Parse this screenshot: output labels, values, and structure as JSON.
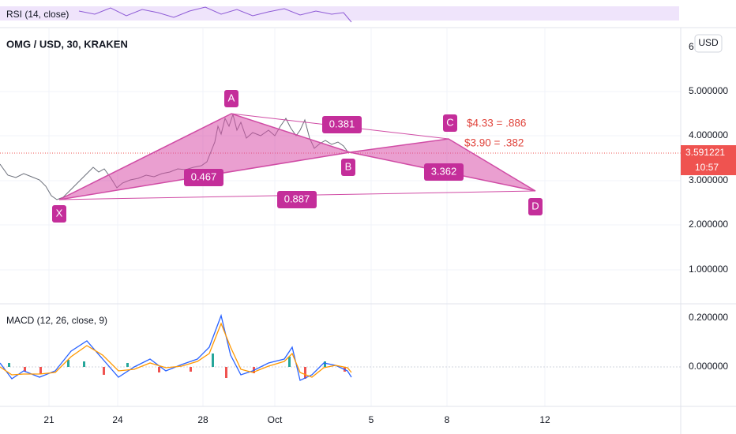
{
  "rsi_title": "RSI (14, close)",
  "symbol": "OMG / USD, 30, KRAKEN",
  "currency": "USD",
  "price_axis": [
    "6.",
    "5.000000",
    "4.000000",
    "3.000000",
    "2.000000",
    "1.000000"
  ],
  "current_price": "3.591221",
  "countdown": "10:57",
  "macd_title": "MACD (12, 26, close, 9)",
  "macd_axis": [
    "0.200000",
    "0.000000"
  ],
  "time_axis": [
    "21",
    "24",
    "28",
    "Oct",
    "5",
    "8",
    "12"
  ],
  "pattern_points": [
    "X",
    "A",
    "B",
    "C",
    "D"
  ],
  "ratios": [
    "0.381",
    "0.467",
    "3.362",
    "0.887"
  ],
  "annotations": [
    "$4.33 = .886",
    "$3.90 = .382"
  ]
}
